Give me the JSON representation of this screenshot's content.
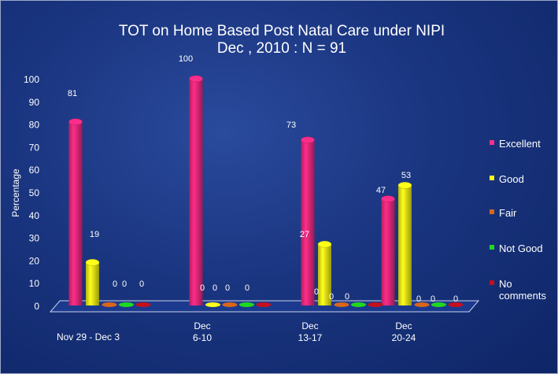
{
  "chart_data": {
    "type": "bar",
    "title": [
      "TOT on Home Based Post Natal Care under NIPI",
      "Dec , 2010 : N = 91"
    ],
    "xlabel": "",
    "ylabel": "Percentage",
    "ylim": [
      0,
      100
    ],
    "yticks": [
      "0",
      "10",
      "20",
      "30",
      "40",
      "50",
      "60",
      "70",
      "80",
      "90",
      "100"
    ],
    "categories": [
      [
        "Nov 29 - Dec 3"
      ],
      [
        "Dec",
        "6-10"
      ],
      [
        "Dec",
        "13-17"
      ],
      [
        "Dec",
        "20-24"
      ]
    ],
    "legend_position": "right",
    "series": [
      {
        "name": "Excellent",
        "color": "#ff2d8a",
        "values": [
          81,
          100,
          73,
          47
        ]
      },
      {
        "name": "Good",
        "color": "#ffff1a",
        "values": [
          19,
          0,
          27,
          53
        ]
      },
      {
        "name": "Fair",
        "color": "#d9661a",
        "values": [
          0,
          0,
          0,
          0
        ]
      },
      {
        "name": "Not Good",
        "color": "#1fd91f",
        "values": [
          0,
          0,
          0,
          0
        ]
      },
      {
        "name": "No comments",
        "legend_lines": [
          "No",
          "comments"
        ],
        "color": "#c4101c",
        "values": [
          0,
          0,
          0,
          0
        ]
      }
    ],
    "data_labels": [
      [
        "81",
        "19",
        "0",
        "0",
        "0"
      ],
      [
        "100",
        "0",
        "0",
        "0",
        "0"
      ],
      [
        "73",
        "27",
        "0",
        "0",
        "0"
      ],
      [
        "47",
        "53",
        "0",
        "0",
        "0"
      ]
    ]
  }
}
